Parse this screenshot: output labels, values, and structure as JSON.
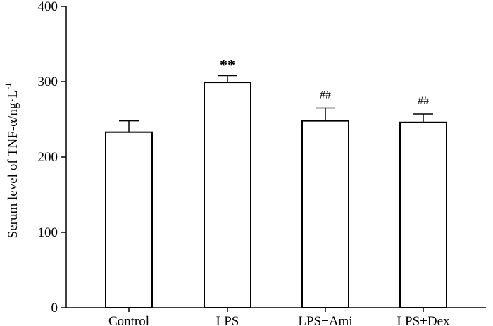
{
  "chart_data": {
    "type": "bar",
    "categories": [
      "Control",
      "LPS",
      "LPS+Ami",
      "LPS+Dex"
    ],
    "values": [
      233,
      299,
      248,
      246
    ],
    "errors": [
      15,
      9,
      17,
      11
    ],
    "annotations": [
      "",
      "**",
      "##",
      "##"
    ],
    "ylabel": "Serum level of TNF-α/ng·L",
    "ylabel_superscript": "-1",
    "ylim": [
      0,
      400
    ],
    "yticks": [
      0,
      100,
      200,
      300,
      400
    ],
    "grid": false,
    "legend": "none",
    "bar_fill": "#ffffff",
    "bar_stroke": "#000000"
  }
}
